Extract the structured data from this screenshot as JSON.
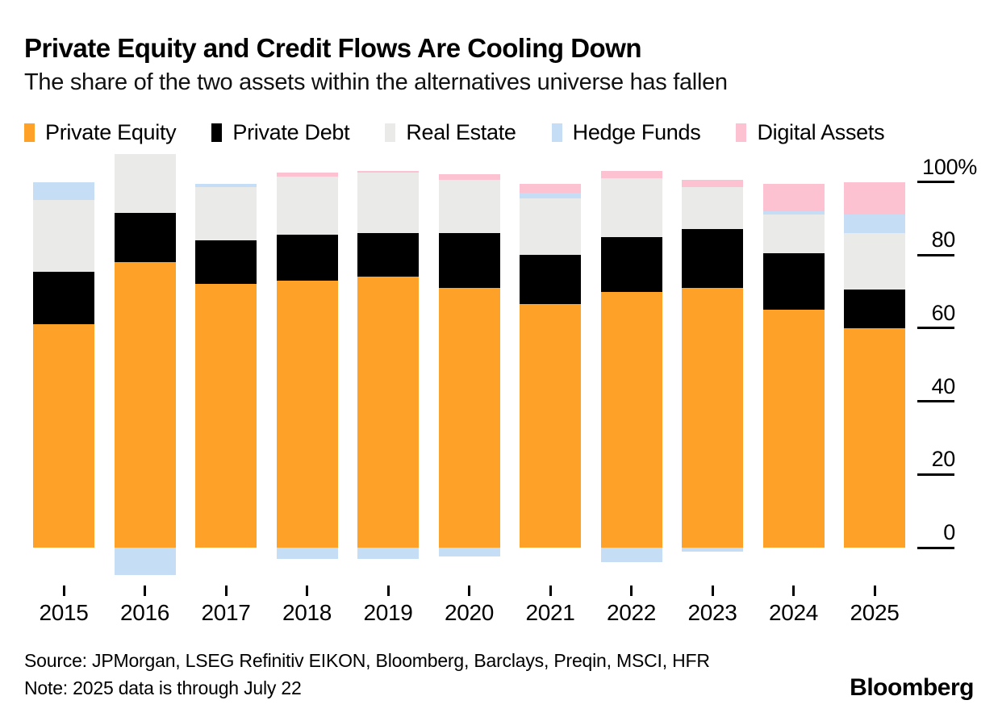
{
  "header": {
    "title": "Private Equity and Credit Flows Are Cooling Down",
    "subtitle": "The share of the two assets within the alternatives universe has fallen"
  },
  "chart_data": {
    "type": "bar",
    "stacked": true,
    "title": "Private Equity and Credit Flows Are Cooling Down",
    "subtitle": "The share of the two assets within the alternatives universe has fallen",
    "unit": "%",
    "categories": [
      "2015",
      "2016",
      "2017",
      "2018",
      "2019",
      "2020",
      "2021",
      "2022",
      "2023",
      "2024",
      "2025"
    ],
    "series": [
      {
        "name": "Private Equity",
        "color": "#FDA129",
        "values": [
          61,
          78,
          72,
          73,
          74,
          71,
          66.5,
          70,
          71,
          65,
          60
        ]
      },
      {
        "name": "Private Debt",
        "color": "#000000",
        "values": [
          14.5,
          13.5,
          12,
          12.5,
          12,
          15,
          13.5,
          15,
          16,
          15.5,
          10.5
        ]
      },
      {
        "name": "Real Estate",
        "color": "#EAEAE8",
        "values": [
          19.5,
          16,
          14.5,
          16,
          16.5,
          14.5,
          15.5,
          16,
          11.5,
          10.5,
          15.5
        ]
      },
      {
        "name": "Hedge Funds",
        "color": "#C5DEF6",
        "values": [
          5,
          -7.5,
          1,
          -3,
          -3,
          -2.5,
          1.5,
          -4,
          -1,
          1,
          5
        ]
      },
      {
        "name": "Digital Assets",
        "color": "#FDC2D2",
        "values": [
          0,
          0,
          0,
          1,
          0.5,
          1.5,
          2.5,
          2,
          2,
          7.5,
          9
        ]
      }
    ],
    "y_ticks": [
      {
        "label": "100%",
        "v": 100
      },
      {
        "label": "80",
        "v": 80
      },
      {
        "label": "60",
        "v": 60
      },
      {
        "label": "40",
        "v": 40
      },
      {
        "label": "20",
        "v": 20
      },
      {
        "label": "0",
        "v": 0
      }
    ],
    "ylim": [
      -8,
      108
    ],
    "grid": false,
    "axis_side": "right",
    "legend_position": "top"
  },
  "footer": {
    "source": "Source: JPMorgan, LSEG Refinitiv EIKON, Bloomberg, Barclays, Preqin, MSCI, HFR",
    "note": "Note: 2025 data is through July 22",
    "brand": "Bloomberg"
  }
}
